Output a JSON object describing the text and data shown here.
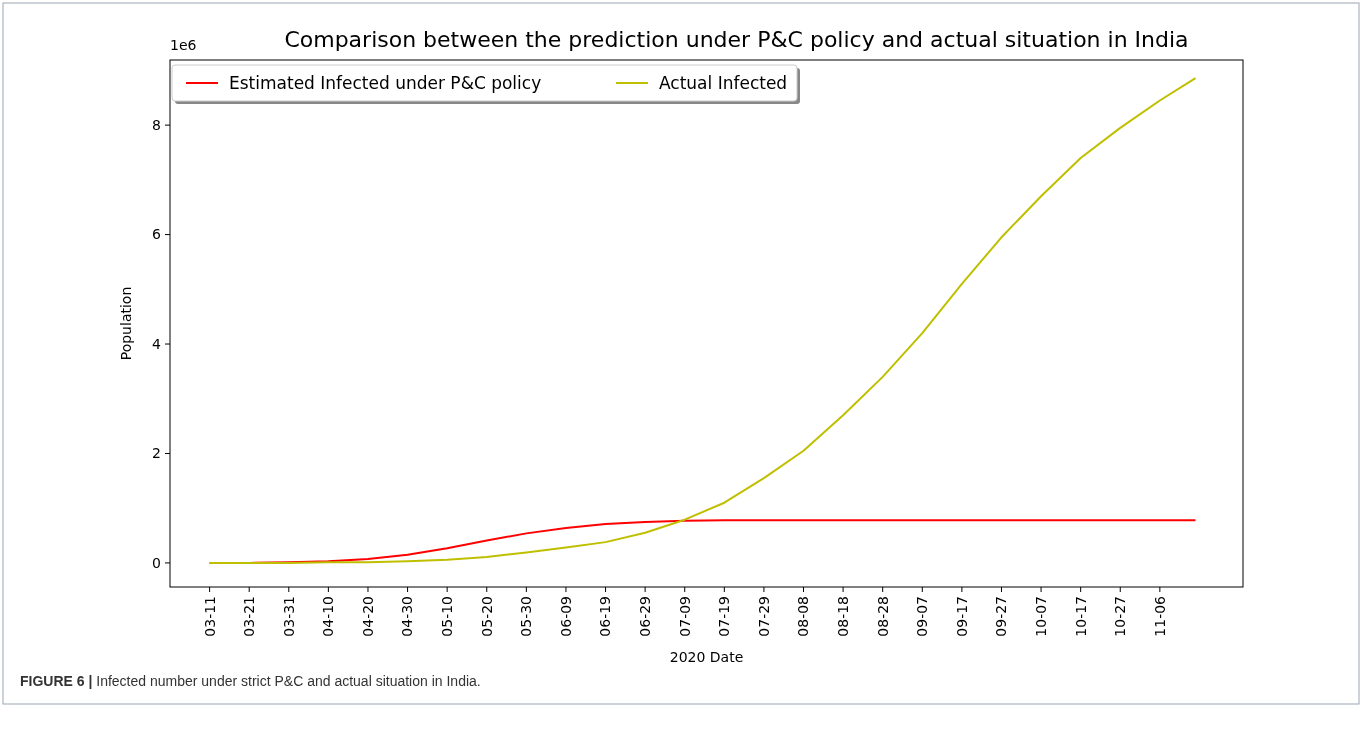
{
  "chart_data": {
    "type": "line",
    "title": "Comparison between the prediction under P&C policy and actual situation in India",
    "xlabel": "2020 Date",
    "ylabel": "Population",
    "annotations": [
      "1e6",
      "FIGURE 6 | Infected number under strict P&C and actual situation in India."
    ],
    "x": [
      "2020-03-11",
      "2020-03-21",
      "2020-03-31",
      "2020-04-10",
      "2020-04-20",
      "2020-04-30",
      "2020-05-10",
      "2020-05-20",
      "2020-05-30",
      "2020-06-09",
      "2020-06-19",
      "2020-06-29",
      "2020-07-09",
      "2020-07-19",
      "2020-07-29",
      "2020-08-08",
      "2020-08-18",
      "2020-08-28",
      "2020-09-07",
      "2020-09-17",
      "2020-09-27",
      "2020-10-07",
      "2020-10-17",
      "2020-10-27",
      "2020-11-06",
      "2020-11-15"
    ],
    "series": [
      {
        "name": "Estimated Infected under P&C policy",
        "color": "#ff0000",
        "values": [
          0,
          0,
          0.01,
          0.03,
          0.07,
          0.15,
          0.27,
          0.41,
          0.54,
          0.64,
          0.71,
          0.75,
          0.77,
          0.78,
          0.78,
          0.78,
          0.78,
          0.78,
          0.78,
          0.78,
          0.78,
          0.78,
          0.78,
          0.78,
          0.78,
          0.78
        ]
      },
      {
        "name": "Actual Infected",
        "color": "#bfbf00",
        "values": [
          0,
          0,
          0,
          0.01,
          0.01,
          0.03,
          0.06,
          0.11,
          0.19,
          0.28,
          0.38,
          0.55,
          0.79,
          1.1,
          1.55,
          2.05,
          2.7,
          3.4,
          4.2,
          5.1,
          5.95,
          6.7,
          7.4,
          7.95,
          8.45,
          8.86
        ]
      }
    ],
    "xlim": [
      "2020-03-01",
      "2020-11-27"
    ],
    "ylim": [
      -0.44,
      9.19
    ],
    "xticks": [
      {
        "value": "2020-03-11",
        "label": "03-11"
      },
      {
        "value": "2020-03-21",
        "label": "03-21"
      },
      {
        "value": "2020-03-31",
        "label": "03-31"
      },
      {
        "value": "2020-04-10",
        "label": "04-10"
      },
      {
        "value": "2020-04-20",
        "label": "04-20"
      },
      {
        "value": "2020-04-30",
        "label": "04-30"
      },
      {
        "value": "2020-05-10",
        "label": "05-10"
      },
      {
        "value": "2020-05-20",
        "label": "05-20"
      },
      {
        "value": "2020-05-30",
        "label": "05-30"
      },
      {
        "value": "2020-06-09",
        "label": "06-09"
      },
      {
        "value": "2020-06-19",
        "label": "06-19"
      },
      {
        "value": "2020-06-29",
        "label": "06-29"
      },
      {
        "value": "2020-07-09",
        "label": "07-09"
      },
      {
        "value": "2020-07-19",
        "label": "07-19"
      },
      {
        "value": "2020-07-29",
        "label": "07-29"
      },
      {
        "value": "2020-08-08",
        "label": "08-08"
      },
      {
        "value": "2020-08-18",
        "label": "08-18"
      },
      {
        "value": "2020-08-28",
        "label": "08-28"
      },
      {
        "value": "2020-09-07",
        "label": "09-07"
      },
      {
        "value": "2020-09-17",
        "label": "09-17"
      },
      {
        "value": "2020-09-27",
        "label": "09-27"
      },
      {
        "value": "2020-10-07",
        "label": "10-07"
      },
      {
        "value": "2020-10-17",
        "label": "10-17"
      },
      {
        "value": "2020-10-27",
        "label": "10-27"
      },
      {
        "value": "2020-11-06",
        "label": "11-06"
      }
    ],
    "yticks": [
      0,
      2,
      4,
      6,
      8
    ],
    "grid": false,
    "legend": "top left",
    "marker": "none",
    "line_style": "solid"
  }
}
